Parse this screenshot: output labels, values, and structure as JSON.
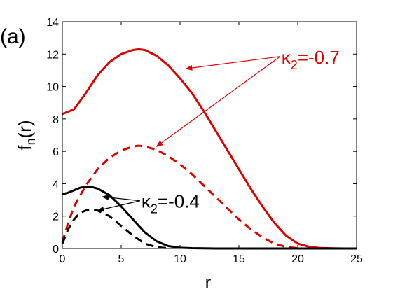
{
  "chart_data": {
    "type": "line",
    "panel_label": "(a)",
    "xlabel": "r",
    "ylabel_main": "f",
    "ylabel_sub": "n",
    "ylabel_tail": "(r)",
    "xlim": [
      0,
      25
    ],
    "ylim": [
      0,
      14
    ],
    "xticks": [
      0,
      5,
      10,
      15,
      20,
      25
    ],
    "yticks": [
      0,
      2,
      4,
      6,
      8,
      10,
      12,
      14
    ],
    "grid": false,
    "series": [
      {
        "color": "#e00000",
        "dash": "solid",
        "x": [
          0,
          1,
          2,
          3,
          4,
          5,
          6,
          6.5,
          7,
          8,
          9,
          10,
          11,
          12,
          13,
          14,
          15,
          16,
          17,
          18,
          19,
          20,
          21,
          22,
          23,
          24,
          25
        ],
        "y": [
          8.3,
          8.6,
          9.6,
          10.7,
          11.5,
          12.0,
          12.25,
          12.3,
          12.25,
          11.9,
          11.3,
          10.5,
          9.6,
          8.5,
          7.3,
          6.1,
          4.9,
          3.7,
          2.6,
          1.6,
          0.8,
          0.3,
          0.1,
          0.03,
          0.01,
          0,
          0
        ]
      },
      {
        "color": "#e00000",
        "dash": "dashed",
        "x": [
          0,
          0.5,
          1,
          2,
          3,
          4,
          5,
          6,
          6.5,
          7,
          8,
          9,
          10,
          11,
          12,
          13,
          14,
          15,
          16,
          17,
          18,
          19,
          20
        ],
        "y": [
          0.4,
          1.6,
          2.6,
          3.9,
          4.9,
          5.6,
          6.05,
          6.3,
          6.35,
          6.3,
          6.1,
          5.7,
          5.2,
          4.6,
          3.9,
          3.2,
          2.5,
          1.8,
          1.2,
          0.7,
          0.3,
          0.1,
          0.02
        ]
      },
      {
        "color": "#000000",
        "dash": "solid",
        "x": [
          0,
          0.5,
          1,
          1.5,
          2,
          2.5,
          3,
          4,
          5,
          6,
          7,
          8,
          9,
          10,
          11,
          12,
          13,
          14,
          15,
          20,
          25
        ],
        "y": [
          3.35,
          3.45,
          3.6,
          3.75,
          3.82,
          3.8,
          3.7,
          3.3,
          2.6,
          1.8,
          1.0,
          0.45,
          0.15,
          0.05,
          0.02,
          0.01,
          0,
          0,
          0,
          0,
          0
        ]
      },
      {
        "color": "#000000",
        "dash": "dashed",
        "x": [
          0,
          0.5,
          1,
          1.5,
          2,
          2.5,
          3,
          4,
          5,
          6,
          7,
          8,
          9
        ],
        "y": [
          0.3,
          1.2,
          1.8,
          2.2,
          2.35,
          2.4,
          2.35,
          2.0,
          1.4,
          0.8,
          0.3,
          0.08,
          0.02
        ]
      }
    ],
    "annotations": [
      {
        "kappa": "κ",
        "sub": "2",
        "value": "=-0.7",
        "color": "#e00000",
        "anchor_x": 18.5,
        "anchor_y": 11.85,
        "targets": [
          [
            10.5,
            11.1
          ],
          [
            8.0,
            6.3
          ]
        ]
      },
      {
        "kappa": "κ",
        "sub": "2",
        "value": "=-0.4",
        "color": "#000000",
        "anchor_x": 6.6,
        "anchor_y": 2.95,
        "targets": [
          [
            3.4,
            3.2
          ],
          [
            3.0,
            2.35
          ]
        ]
      }
    ]
  }
}
